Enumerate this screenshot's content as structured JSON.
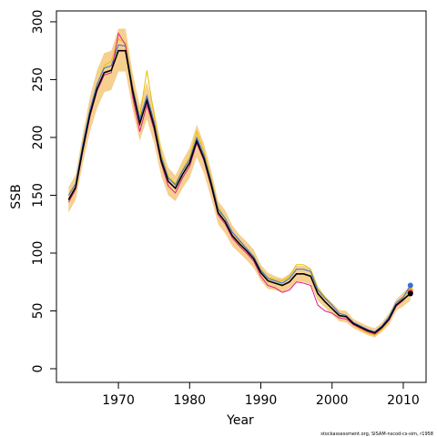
{
  "chart_data": {
    "type": "line",
    "x_label": "Year",
    "y_label": "SSB",
    "caption": "stockassessment.org, SISAM-nscod-cs-sim, r1958",
    "x": [
      1963,
      1964,
      1965,
      1966,
      1967,
      1968,
      1969,
      1970,
      1971,
      1972,
      1973,
      1974,
      1975,
      1976,
      1977,
      1978,
      1979,
      1980,
      1981,
      1982,
      1983,
      1984,
      1985,
      1986,
      1987,
      1988,
      1989,
      1990,
      1991,
      1992,
      1993,
      1994,
      1995,
      1996,
      1997,
      1998,
      1999,
      2000,
      2001,
      2002,
      2003,
      2004,
      2005,
      2006,
      2007,
      2008,
      2009,
      2010,
      2011
    ],
    "band": {
      "color": "#f5d08f",
      "upper": [
        157,
        168,
        203,
        235,
        258,
        273,
        275,
        294,
        294,
        256,
        227,
        248,
        225,
        193,
        174,
        167,
        180,
        191,
        211,
        195,
        172,
        145,
        137,
        124,
        116,
        110,
        103,
        90,
        83,
        80,
        78,
        82,
        89,
        89,
        87,
        71,
        63,
        57,
        51,
        50,
        43,
        40,
        37,
        35,
        40,
        48,
        60,
        66,
        72
      ],
      "lower": [
        135,
        146,
        177,
        205,
        225,
        239,
        241,
        257,
        257,
        224,
        197,
        216,
        195,
        167,
        150,
        145,
        156,
        165,
        183,
        169,
        148,
        125,
        117,
        106,
        100,
        94,
        87,
        76,
        69,
        68,
        66,
        69,
        75,
        75,
        73,
        59,
        53,
        47,
        41,
        40,
        35,
        32,
        29,
        27,
        32,
        38,
        50,
        54,
        59
      ]
    },
    "series": [
      {
        "color": "#e6c000",
        "values": [
          148,
          158,
          192,
          222,
          245,
          262,
          266,
          285,
          282,
          245,
          218,
          258,
          220,
          186,
          166,
          160,
          172,
          183,
          205,
          188,
          165,
          140,
          130,
          118,
          110,
          104,
          97,
          86,
          79,
          77,
          76,
          80,
          90,
          90,
          86,
          70,
          62,
          55,
          48,
          46,
          38,
          34,
          31,
          29,
          34,
          42,
          55,
          62,
          68
        ]
      },
      {
        "color": "#3a6fd8",
        "values": [
          150,
          160,
          194,
          224,
          246,
          260,
          262,
          280,
          279,
          243,
          216,
          236,
          214,
          183,
          165,
          159,
          171,
          181,
          200,
          185,
          163,
          138,
          130,
          118,
          111,
          104,
          97,
          85,
          78,
          76,
          74,
          78,
          86,
          86,
          84,
          68,
          61,
          55,
          48,
          46,
          40,
          37,
          34,
          32,
          37,
          45,
          57,
          62,
          72
        ]
      },
      {
        "color": "#e0208a",
        "values": [
          144,
          155,
          188,
          218,
          240,
          254,
          256,
          290,
          280,
          235,
          205,
          228,
          207,
          178,
          158,
          152,
          165,
          175,
          195,
          180,
          158,
          133,
          125,
          113,
          106,
          100,
          93,
          80,
          72,
          70,
          66,
          68,
          75,
          74,
          72,
          55,
          50,
          48,
          44,
          43,
          38,
          35,
          32,
          30,
          35,
          42,
          54,
          59,
          66
        ]
      },
      {
        "color": "#000000",
        "values": [
          146,
          157,
          190,
          220,
          242,
          256,
          258,
          275,
          275,
          240,
          212,
          232,
          210,
          180,
          162,
          156,
          168,
          178,
          197,
          182,
          160,
          135,
          127,
          115,
          108,
          102,
          95,
          83,
          76,
          74,
          72,
          75,
          82,
          82,
          80,
          65,
          58,
          52,
          46,
          45,
          39,
          36,
          33,
          31,
          36,
          43,
          55,
          60,
          65
        ]
      }
    ],
    "xlim": [
      1961.3,
      2013.2
    ],
    "ylim": [
      -11.8,
      309.4
    ],
    "xticks": [
      1970,
      1980,
      1990,
      2000,
      2010
    ],
    "yticks": [
      0,
      50,
      100,
      150,
      200,
      250,
      300
    ]
  }
}
